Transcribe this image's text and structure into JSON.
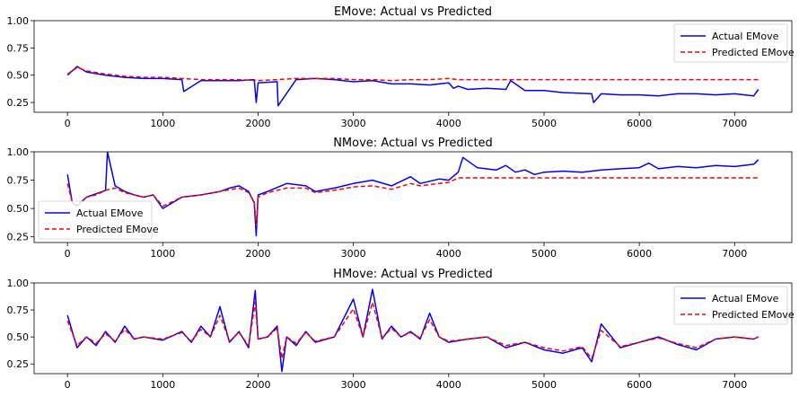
{
  "chart_data": [
    {
      "type": "line",
      "title": "EMove: Actual vs Predicted",
      "xlim": [
        -350,
        7600
      ],
      "ylim": [
        0.16,
        1.0
      ],
      "xticks": [
        0,
        1000,
        2000,
        3000,
        4000,
        5000,
        6000,
        7000
      ],
      "yticks": [
        0.25,
        0.5,
        0.75,
        1.0
      ],
      "ytick_labels": [
        "0.25",
        "0.50",
        "0.75",
        "1.00"
      ],
      "legend_position": "top-right",
      "grid": false,
      "series": [
        {
          "name": "Actual EMove",
          "color": "#0000ff",
          "style": "solid",
          "x": [
            0,
            100,
            200,
            400,
            600,
            800,
            1000,
            1200,
            1220,
            1400,
            1600,
            1800,
            1960,
            1980,
            2000,
            2200,
            2210,
            2400,
            2600,
            2800,
            3000,
            3200,
            3400,
            3600,
            3800,
            4000,
            4050,
            4100,
            4200,
            4400,
            4600,
            4650,
            4800,
            5000,
            5200,
            5500,
            5520,
            5600,
            5800,
            6000,
            6200,
            6400,
            6600,
            6800,
            7000,
            7200,
            7250
          ],
          "y": [
            0.5,
            0.58,
            0.53,
            0.5,
            0.48,
            0.47,
            0.47,
            0.46,
            0.35,
            0.45,
            0.45,
            0.45,
            0.46,
            0.25,
            0.43,
            0.44,
            0.22,
            0.46,
            0.47,
            0.46,
            0.44,
            0.45,
            0.42,
            0.42,
            0.41,
            0.43,
            0.38,
            0.4,
            0.37,
            0.38,
            0.37,
            0.45,
            0.36,
            0.36,
            0.34,
            0.33,
            0.25,
            0.33,
            0.32,
            0.32,
            0.31,
            0.33,
            0.33,
            0.32,
            0.33,
            0.31,
            0.37
          ]
        },
        {
          "name": "Predicted EMove",
          "color": "#ff0000",
          "style": "dashed",
          "x": [
            0,
            100,
            200,
            400,
            600,
            800,
            1000,
            1200,
            1400,
            1600,
            1800,
            2000,
            2200,
            2400,
            2600,
            2800,
            3000,
            3200,
            3400,
            3600,
            3800,
            4000,
            4100,
            7250
          ],
          "y": [
            0.51,
            0.57,
            0.54,
            0.51,
            0.49,
            0.48,
            0.48,
            0.47,
            0.46,
            0.46,
            0.46,
            0.45,
            0.46,
            0.47,
            0.47,
            0.47,
            0.46,
            0.46,
            0.45,
            0.46,
            0.46,
            0.47,
            0.46,
            0.46
          ]
        }
      ]
    },
    {
      "type": "line",
      "title": "NMove: Actual vs Predicted",
      "xlim": [
        -350,
        7600
      ],
      "ylim": [
        0.2,
        1.0
      ],
      "xticks": [
        0,
        1000,
        2000,
        3000,
        4000,
        5000,
        6000,
        7000
      ],
      "yticks": [
        0.25,
        0.5,
        0.75,
        1.0
      ],
      "ytick_labels": [
        "0.25",
        "0.50",
        "0.75",
        "1.00"
      ],
      "legend_position": "lower-left",
      "grid": false,
      "series": [
        {
          "name": "Actual EMove",
          "color": "#0000ff",
          "style": "solid",
          "x": [
            0,
            50,
            100,
            200,
            300,
            400,
            420,
            500,
            600,
            700,
            800,
            900,
            1000,
            1200,
            1400,
            1600,
            1700,
            1800,
            1900,
            1960,
            1980,
            2000,
            2100,
            2300,
            2500,
            2600,
            2800,
            3000,
            3200,
            3400,
            3600,
            3700,
            3800,
            3900,
            4000,
            4100,
            4150,
            4300,
            4500,
            4600,
            4700,
            4800,
            4900,
            5000,
            5200,
            5400,
            5600,
            5800,
            6000,
            6100,
            6200,
            6400,
            6600,
            6800,
            7000,
            7200,
            7250
          ],
          "y": [
            0.8,
            0.55,
            0.52,
            0.6,
            0.63,
            0.66,
            1.0,
            0.7,
            0.65,
            0.62,
            0.6,
            0.62,
            0.5,
            0.6,
            0.62,
            0.65,
            0.68,
            0.7,
            0.65,
            0.55,
            0.26,
            0.62,
            0.65,
            0.72,
            0.7,
            0.65,
            0.68,
            0.72,
            0.75,
            0.7,
            0.78,
            0.72,
            0.74,
            0.76,
            0.75,
            0.82,
            0.95,
            0.86,
            0.84,
            0.88,
            0.82,
            0.84,
            0.8,
            0.82,
            0.83,
            0.82,
            0.84,
            0.85,
            0.86,
            0.9,
            0.85,
            0.87,
            0.86,
            0.88,
            0.87,
            0.89,
            0.93
          ]
        },
        {
          "name": "Predicted EMove",
          "color": "#ff0000",
          "style": "dashed",
          "x": [
            0,
            50,
            100,
            200,
            300,
            400,
            500,
            600,
            700,
            800,
            900,
            1000,
            1200,
            1400,
            1600,
            1800,
            1900,
            1960,
            1980,
            2000,
            2100,
            2300,
            2500,
            2600,
            2800,
            3000,
            3200,
            3400,
            3600,
            3700,
            3800,
            3900,
            4000,
            4100,
            7250
          ],
          "y": [
            0.72,
            0.55,
            0.53,
            0.6,
            0.62,
            0.66,
            0.68,
            0.64,
            0.62,
            0.6,
            0.62,
            0.52,
            0.6,
            0.62,
            0.65,
            0.68,
            0.64,
            0.56,
            0.35,
            0.6,
            0.64,
            0.68,
            0.68,
            0.64,
            0.66,
            0.69,
            0.7,
            0.67,
            0.72,
            0.7,
            0.71,
            0.72,
            0.73,
            0.77,
            0.77
          ]
        }
      ]
    },
    {
      "type": "line",
      "title": "HMove: Actual vs Predicted",
      "xlim": [
        -350,
        7600
      ],
      "ylim": [
        0.16,
        1.0
      ],
      "xticks": [
        0,
        1000,
        2000,
        3000,
        4000,
        5000,
        6000,
        7000
      ],
      "yticks": [
        0.25,
        0.5,
        0.75,
        1.0
      ],
      "ytick_labels": [
        "0.25",
        "0.50",
        "0.75",
        "1.00"
      ],
      "legend_position": "top-right",
      "grid": false,
      "series": [
        {
          "name": "Actual EMove",
          "color": "#0000ff",
          "style": "solid",
          "x": [
            0,
            100,
            200,
            300,
            400,
            500,
            600,
            700,
            800,
            1000,
            1200,
            1300,
            1400,
            1500,
            1600,
            1700,
            1800,
            1900,
            1970,
            2000,
            2100,
            2200,
            2250,
            2300,
            2400,
            2500,
            2600,
            2800,
            3000,
            3100,
            3200,
            3300,
            3400,
            3500,
            3600,
            3700,
            3800,
            3900,
            4000,
            4200,
            4400,
            4600,
            4800,
            5000,
            5200,
            5400,
            5500,
            5600,
            5800,
            6000,
            6200,
            6400,
            6600,
            6800,
            7000,
            7200,
            7250
          ],
          "y": [
            0.7,
            0.4,
            0.5,
            0.42,
            0.55,
            0.45,
            0.6,
            0.48,
            0.5,
            0.47,
            0.55,
            0.45,
            0.6,
            0.5,
            0.78,
            0.45,
            0.55,
            0.4,
            0.93,
            0.48,
            0.5,
            0.6,
            0.18,
            0.5,
            0.42,
            0.55,
            0.45,
            0.5,
            0.85,
            0.5,
            0.94,
            0.48,
            0.6,
            0.5,
            0.55,
            0.48,
            0.72,
            0.5,
            0.45,
            0.48,
            0.5,
            0.4,
            0.45,
            0.38,
            0.35,
            0.4,
            0.27,
            0.62,
            0.4,
            0.45,
            0.5,
            0.43,
            0.38,
            0.48,
            0.5,
            0.48,
            0.5
          ]
        },
        {
          "name": "Predicted EMove",
          "color": "#ff0000",
          "style": "dashed",
          "x": [
            0,
            100,
            200,
            300,
            400,
            500,
            600,
            700,
            800,
            1000,
            1200,
            1300,
            1400,
            1500,
            1600,
            1700,
            1800,
            1900,
            1970,
            2000,
            2100,
            2200,
            2250,
            2300,
            2400,
            2500,
            2600,
            2800,
            3000,
            3100,
            3200,
            3300,
            3400,
            3500,
            3600,
            3700,
            3800,
            3900,
            4000,
            4200,
            4400,
            4600,
            4800,
            5000,
            5200,
            5400,
            5500,
            5600,
            5800,
            6000,
            6200,
            6400,
            6600,
            6800,
            7000,
            7200,
            7250
          ],
          "y": [
            0.65,
            0.42,
            0.5,
            0.44,
            0.53,
            0.46,
            0.57,
            0.48,
            0.5,
            0.48,
            0.54,
            0.46,
            0.57,
            0.5,
            0.7,
            0.46,
            0.54,
            0.42,
            0.82,
            0.48,
            0.5,
            0.58,
            0.3,
            0.5,
            0.44,
            0.54,
            0.46,
            0.5,
            0.76,
            0.5,
            0.82,
            0.49,
            0.58,
            0.5,
            0.54,
            0.49,
            0.66,
            0.5,
            0.46,
            0.48,
            0.5,
            0.42,
            0.45,
            0.4,
            0.37,
            0.41,
            0.3,
            0.56,
            0.41,
            0.45,
            0.49,
            0.44,
            0.4,
            0.48,
            0.5,
            0.48,
            0.5
          ]
        }
      ]
    }
  ]
}
